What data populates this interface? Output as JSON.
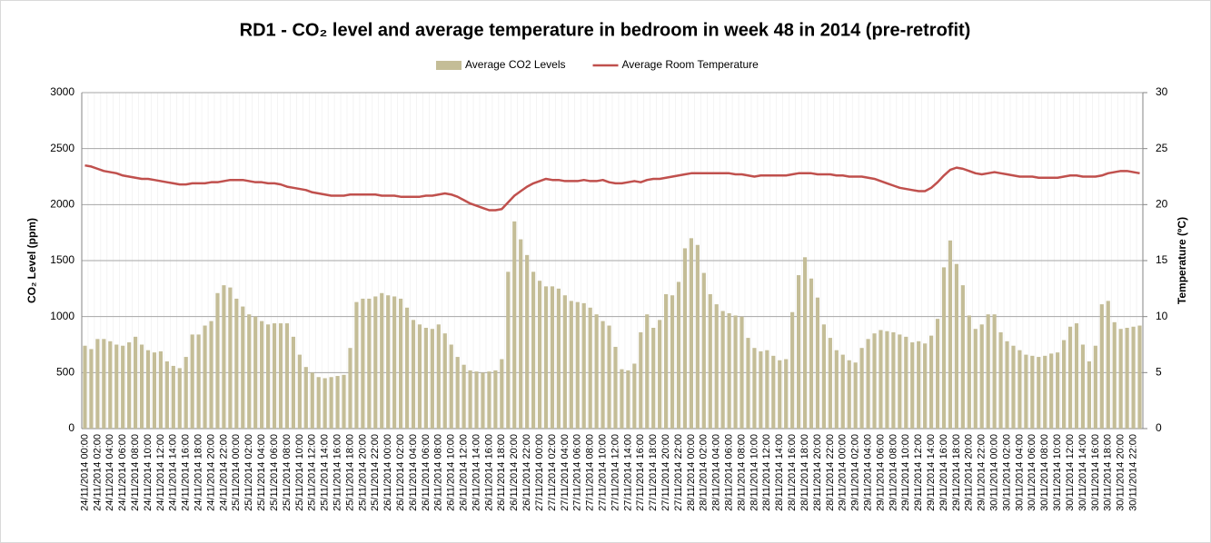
{
  "chart_data": {
    "type": "bar",
    "title": "RD1 - CO₂ level  and average temperature in bedroom in week 48 in 2014 (pre-retrofit)",
    "ylabel": "CO₂ Level (ppm)",
    "y2label": "Temperature (ºC)",
    "ylim": [
      0,
      3000
    ],
    "yticks": [
      0,
      500,
      1000,
      1500,
      2000,
      2500,
      3000
    ],
    "y2lim": [
      0,
      30
    ],
    "y2ticks": [
      0,
      5,
      10,
      15,
      20,
      25,
      30
    ],
    "grid": true,
    "legend": "top",
    "categories": [
      "24/11/2014 00:00",
      null,
      "24/11/2014 02:00",
      null,
      "24/11/2014 04:00",
      null,
      "24/11/2014 06:00",
      null,
      "24/11/2014 08:00",
      null,
      "24/11/2014 10:00",
      null,
      "24/11/2014 12:00",
      null,
      "24/11/2014 14:00",
      null,
      "24/11/2014 16:00",
      null,
      "24/11/2014 18:00",
      null,
      "24/11/2014 20:00",
      null,
      "24/11/2014 22:00",
      null,
      "25/11/2014 00:00",
      null,
      "25/11/2014 02:00",
      null,
      "25/11/2014 04:00",
      null,
      "25/11/2014 06:00",
      null,
      "25/11/2014 08:00",
      null,
      "25/11/2014 10:00",
      null,
      "25/11/2014 12:00",
      null,
      "25/11/2014 14:00",
      null,
      "25/11/2014 16:00",
      null,
      "25/11/2014 18:00",
      null,
      "25/11/2014 20:00",
      null,
      "25/11/2014 22:00",
      null,
      "26/11/2014 00:00",
      null,
      "26/11/2014 02:00",
      null,
      "26/11/2014 04:00",
      null,
      "26/11/2014 06:00",
      null,
      "26/11/2014 08:00",
      null,
      "26/11/2014 10:00",
      null,
      "26/11/2014 12:00",
      null,
      "26/11/2014 14:00",
      null,
      "26/11/2014 16:00",
      null,
      "26/11/2014 18:00",
      null,
      "26/11/2014 20:00",
      null,
      "26/11/2014 22:00",
      null,
      "27/11/2014 00:00",
      null,
      "27/11/2014 02:00",
      null,
      "27/11/2014 04:00",
      null,
      "27/11/2014 06:00",
      null,
      "27/11/2014 08:00",
      null,
      "27/11/2014 10:00",
      null,
      "27/11/2014 12:00",
      null,
      "27/11/2014 14:00",
      null,
      "27/11/2014 16:00",
      null,
      "27/11/2014 18:00",
      null,
      "27/11/2014 20:00",
      null,
      "27/11/2014 22:00",
      null,
      "28/11/2014 00:00",
      null,
      "28/11/2014 02:00",
      null,
      "28/11/2014 04:00",
      null,
      "28/11/2014 06:00",
      null,
      "28/11/2014 08:00",
      null,
      "28/11/2014 10:00",
      null,
      "28/11/2014 12:00",
      null,
      "28/11/2014 14:00",
      null,
      "28/11/2014 16:00",
      null,
      "28/11/2014 18:00",
      null,
      "28/11/2014 20:00",
      null,
      "28/11/2014 22:00",
      null,
      "29/11/2014 00:00",
      null,
      "29/11/2014 02:00",
      null,
      "29/11/2014 04:00",
      null,
      "29/11/2014 06:00",
      null,
      "29/11/2014 08:00",
      null,
      "29/11/2014 10:00",
      null,
      "29/11/2014 12:00",
      null,
      "29/11/2014 14:00",
      null,
      "29/11/2014 16:00",
      null,
      "29/11/2014 18:00",
      null,
      "29/11/2014 20:00",
      null,
      "29/11/2014 22:00",
      null,
      "30/11/2014 00:00",
      null,
      "30/11/2014 02:00",
      null,
      "30/11/2014 04:00",
      null,
      "30/11/2014 06:00",
      null,
      "30/11/2014 08:00",
      null,
      "30/11/2014 10:00",
      null,
      "30/11/2014 12:00",
      null,
      "30/11/2014 14:00",
      null,
      "30/11/2014 16:00",
      null,
      "30/11/2014 18:00",
      null,
      "30/11/2014 20:00",
      null,
      "30/11/2014 22:00",
      null
    ],
    "series": [
      {
        "name": "Average CO2 Levels",
        "color": "#c4bd97",
        "type": "bar",
        "values": [
          740,
          710,
          800,
          800,
          780,
          750,
          740,
          770,
          820,
          750,
          700,
          680,
          690,
          600,
          560,
          540,
          640,
          840,
          840,
          920,
          960,
          1210,
          1280,
          1260,
          1160,
          1090,
          1020,
          1000,
          960,
          930,
          940,
          940,
          940,
          820,
          660,
          550,
          500,
          460,
          450,
          460,
          470,
          480,
          720,
          1130,
          1160,
          1160,
          1180,
          1210,
          1190,
          1180,
          1160,
          1080,
          970,
          930,
          900,
          890,
          930,
          850,
          750,
          640,
          570,
          520,
          510,
          500,
          510,
          520,
          620,
          1400,
          1850,
          1690,
          1550,
          1400,
          1320,
          1270,
          1270,
          1250,
          1190,
          1140,
          1130,
          1120,
          1080,
          1020,
          960,
          920,
          730,
          530,
          520,
          580,
          860,
          1020,
          900,
          970,
          1200,
          1190,
          1310,
          1610,
          1700,
          1640,
          1390,
          1200,
          1110,
          1050,
          1030,
          1010,
          1000,
          810,
          720,
          690,
          700,
          650,
          610,
          620,
          1040,
          1370,
          1530,
          1340,
          1170,
          930,
          810,
          700,
          660,
          610,
          590,
          720,
          800,
          850,
          880,
          870,
          860,
          840,
          820,
          770,
          780,
          760,
          830,
          980,
          1440,
          1680,
          1470,
          1280,
          1010,
          890,
          930,
          1020,
          1020,
          860,
          780,
          740,
          700,
          660,
          650,
          640,
          650,
          670,
          680,
          790,
          910,
          940,
          750,
          600,
          740,
          1110,
          1140,
          950,
          890,
          900,
          910,
          920
        ]
      },
      {
        "name": "Average Room Temperature",
        "color": "#c0504d",
        "type": "line",
        "axis": "y2",
        "values": [
          23.5,
          23.4,
          23.2,
          23.0,
          22.9,
          22.8,
          22.6,
          22.5,
          22.4,
          22.3,
          22.3,
          22.2,
          22.1,
          22.0,
          21.9,
          21.8,
          21.8,
          21.9,
          21.9,
          21.9,
          22.0,
          22.0,
          22.1,
          22.2,
          22.2,
          22.2,
          22.1,
          22.0,
          22.0,
          21.9,
          21.9,
          21.8,
          21.6,
          21.5,
          21.4,
          21.3,
          21.1,
          21.0,
          20.9,
          20.8,
          20.8,
          20.8,
          20.9,
          20.9,
          20.9,
          20.9,
          20.9,
          20.8,
          20.8,
          20.8,
          20.7,
          20.7,
          20.7,
          20.7,
          20.8,
          20.8,
          20.9,
          21.0,
          20.9,
          20.7,
          20.4,
          20.1,
          19.9,
          19.7,
          19.5,
          19.5,
          19.6,
          20.2,
          20.8,
          21.2,
          21.6,
          21.9,
          22.1,
          22.3,
          22.2,
          22.2,
          22.1,
          22.1,
          22.1,
          22.2,
          22.1,
          22.1,
          22.2,
          22.0,
          21.9,
          21.9,
          22.0,
          22.1,
          22.0,
          22.2,
          22.3,
          22.3,
          22.4,
          22.5,
          22.6,
          22.7,
          22.8,
          22.8,
          22.8,
          22.8,
          22.8,
          22.8,
          22.8,
          22.7,
          22.7,
          22.6,
          22.5,
          22.6,
          22.6,
          22.6,
          22.6,
          22.6,
          22.7,
          22.8,
          22.8,
          22.8,
          22.7,
          22.7,
          22.7,
          22.6,
          22.6,
          22.5,
          22.5,
          22.5,
          22.4,
          22.3,
          22.1,
          21.9,
          21.7,
          21.5,
          21.4,
          21.3,
          21.2,
          21.2,
          21.5,
          22.0,
          22.6,
          23.1,
          23.3,
          23.2,
          23.0,
          22.8,
          22.7,
          22.8,
          22.9,
          22.8,
          22.7,
          22.6,
          22.5,
          22.5,
          22.5,
          22.4,
          22.4,
          22.4,
          22.4,
          22.5,
          22.6,
          22.6,
          22.5,
          22.5,
          22.5,
          22.6,
          22.8,
          22.9,
          23.0,
          23.0,
          22.9,
          22.8
        ]
      }
    ]
  }
}
